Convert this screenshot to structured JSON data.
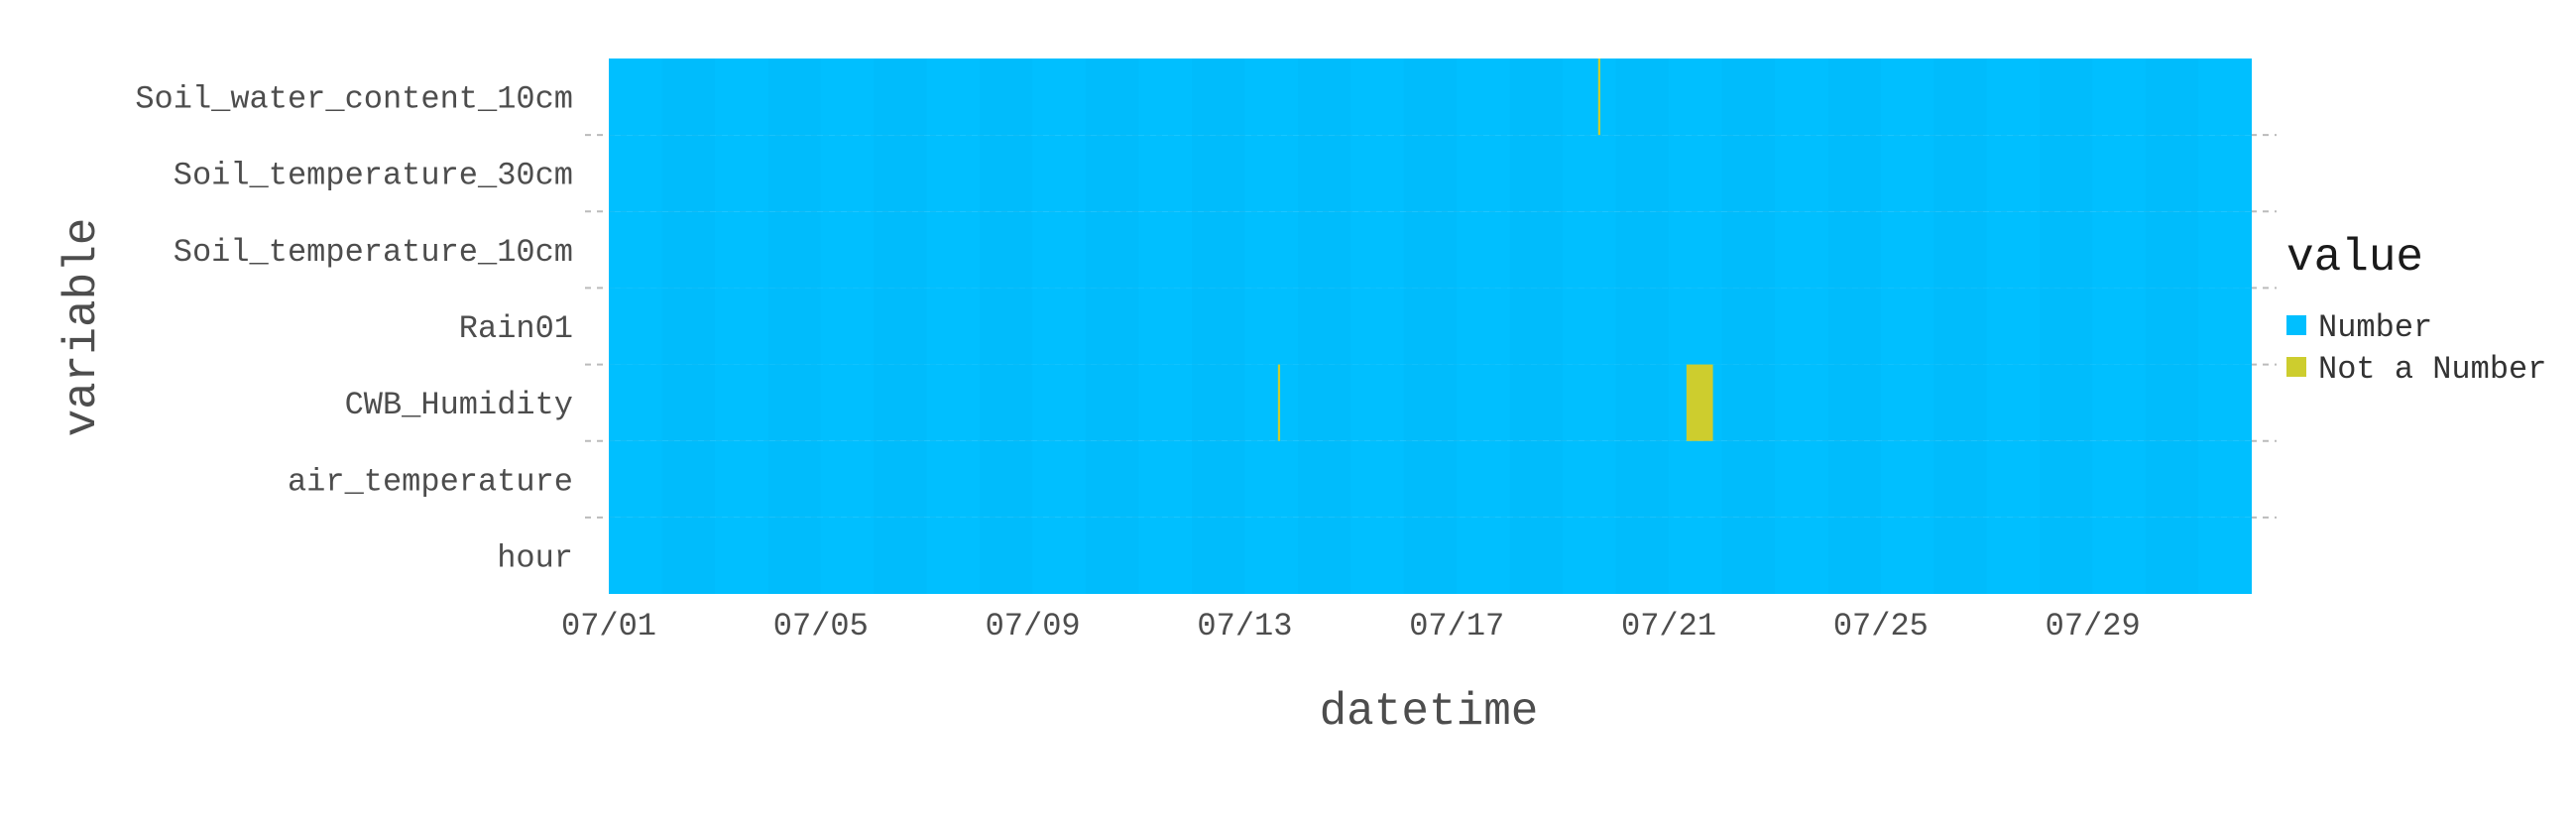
{
  "chart_data": {
    "type": "heatmap",
    "title": "",
    "xlabel": "datetime",
    "ylabel": "variable",
    "x_range": [
      "07/01",
      "08/01"
    ],
    "xticks": [
      "07/01",
      "07/05",
      "07/09",
      "07/13",
      "07/17",
      "07/21",
      "07/25",
      "07/29"
    ],
    "variables": [
      "Soil_water_content_10cm",
      "Soil_temperature_30cm",
      "Soil_temperature_10cm",
      "Rain01",
      "CWB_Humidity",
      "air_temperature",
      "hour"
    ],
    "legend": {
      "title": "value",
      "position": "right",
      "entries": [
        {
          "label": "Number",
          "color": "#00BFFF"
        },
        {
          "label": "Not a Number",
          "color": "#CDCD2E"
        }
      ]
    },
    "default_value": "Number",
    "missing_segments": [
      {
        "variable": "Soil_water_content_10cm",
        "start": "07/19 16:00",
        "end": "07/19 17:00",
        "value": "Not a Number"
      },
      {
        "variable": "CWB_Humidity",
        "start": "07/13 15:00",
        "end": "07/13 16:00",
        "value": "Not a Number"
      },
      {
        "variable": "CWB_Humidity",
        "start": "07/21 08:00",
        "end": "07/21 20:00",
        "value": "Not a Number"
      }
    ],
    "grid": true
  }
}
